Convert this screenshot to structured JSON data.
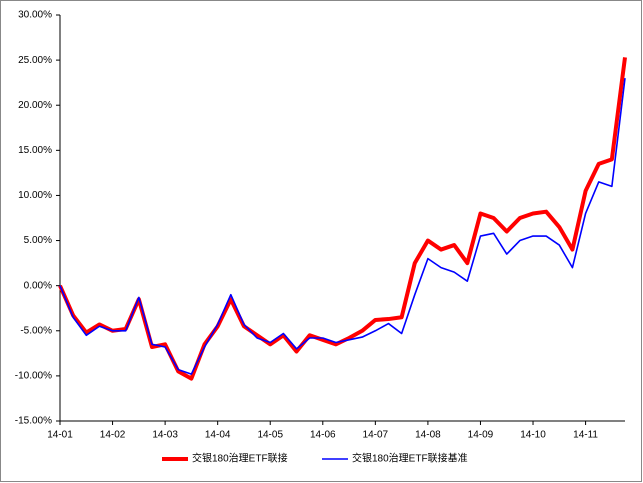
{
  "chart_data": {
    "type": "line",
    "categories": [
      "14-01",
      null,
      null,
      null,
      "14-02",
      null,
      null,
      null,
      "14-03",
      null,
      null,
      null,
      "14-04",
      null,
      null,
      null,
      "14-05",
      null,
      null,
      null,
      "14-06",
      null,
      null,
      null,
      "14-07",
      null,
      null,
      null,
      "14-08",
      null,
      null,
      null,
      "14-09",
      null,
      null,
      null,
      "14-10",
      null,
      null,
      null,
      "14-11",
      null,
      null,
      null
    ],
    "series": [
      {
        "name": "交银180治理ETF联接",
        "color": "#ff0000",
        "values": [
          0,
          -3.3,
          -5.2,
          -4.3,
          -5.0,
          -4.8,
          -1.5,
          -6.8,
          -6.5,
          -9.5,
          -10.3,
          -6.5,
          -4.5,
          -1.5,
          -4.5,
          -5.5,
          -6.5,
          -5.5,
          -7.3,
          -5.5,
          -6.0,
          -6.5,
          -5.8,
          -5.0,
          -3.8,
          -3.7,
          -3.5,
          2.5,
          5.0,
          4.0,
          4.5,
          2.5,
          8.0,
          7.5,
          6.0,
          7.5,
          8.0,
          8.2,
          6.5,
          4.0,
          10.5,
          13.5,
          14.0,
          25.3
        ]
      },
      {
        "name": "交银180治理ETF联接基准",
        "color": "#0000ff",
        "values": [
          0,
          -3.5,
          -5.5,
          -4.5,
          -5.0,
          -5.0,
          -1.3,
          -6.5,
          -6.8,
          -9.3,
          -9.8,
          -6.8,
          -4.3,
          -1.0,
          -4.3,
          -5.8,
          -6.3,
          -5.3,
          -7.0,
          -5.8,
          -5.8,
          -6.3,
          -6.0,
          -5.7,
          -5.0,
          -4.2,
          -5.3,
          -1.0,
          3.0,
          2.0,
          1.5,
          0.5,
          5.5,
          5.8,
          3.5,
          5.0,
          5.5,
          5.5,
          4.5,
          2.0,
          8.0,
          11.5,
          11.0,
          23.0
        ]
      }
    ],
    "ylim": [
      -15,
      30
    ],
    "yticks": [
      {
        "value": -15,
        "label": "-15.00%"
      },
      {
        "value": -10,
        "label": "-10.00%"
      },
      {
        "value": -5,
        "label": "-5.00%"
      },
      {
        "value": 0,
        "label": "0.00%"
      },
      {
        "value": 5,
        "label": "5.00%"
      },
      {
        "value": 10,
        "label": "10.00%"
      },
      {
        "value": 15,
        "label": "15.00%"
      },
      {
        "value": 20,
        "label": "20.00%"
      },
      {
        "value": 25,
        "label": "25.00%"
      },
      {
        "value": 30,
        "label": "30.00%"
      }
    ],
    "legend": "bottom"
  }
}
